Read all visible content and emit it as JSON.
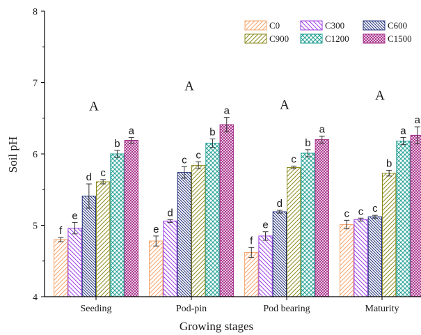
{
  "chart_data": {
    "type": "bar",
    "xlabel": "Growing stages",
    "ylabel": "Soil pH",
    "ylim": [
      4,
      8
    ],
    "yticks": [
      "4",
      "5",
      "6",
      "7",
      "8"
    ],
    "categories": [
      "Seeding",
      "Pod-pin",
      "Pod bearing",
      "Maturity"
    ],
    "group_letters": [
      "A",
      "A",
      "A",
      "A"
    ],
    "legend_position": "top-right",
    "series": [
      {
        "name": "C0",
        "color": "#F5A46A",
        "pattern": "diag-up",
        "values": [
          4.8,
          4.78,
          4.62,
          5.01
        ],
        "errors": [
          0.03,
          0.07,
          0.07,
          0.06
        ],
        "letters": [
          "f",
          "e",
          "f",
          "c"
        ]
      },
      {
        "name": "C300",
        "color": "#9C3CE6",
        "pattern": "diag-down",
        "values": [
          4.96,
          5.06,
          4.85,
          5.08
        ],
        "errors": [
          0.08,
          0.02,
          0.06,
          0.02
        ],
        "letters": [
          "e",
          "d",
          "e",
          "c"
        ]
      },
      {
        "name": "C600",
        "color": "#22307A",
        "pattern": "diag-down-dense",
        "values": [
          5.41,
          5.74,
          5.19,
          5.12
        ],
        "errors": [
          0.17,
          0.08,
          0.02,
          0.02
        ],
        "letters": [
          "d",
          "c",
          "d",
          "c"
        ]
      },
      {
        "name": "C900",
        "color": "#8B8A1E",
        "pattern": "diag-up",
        "values": [
          5.61,
          5.84,
          5.81,
          5.73
        ],
        "errors": [
          0.03,
          0.05,
          0.02,
          0.04
        ],
        "letters": [
          "c",
          "c",
          "c",
          "b"
        ]
      },
      {
        "name": "C1200",
        "color": "#1F9E92",
        "pattern": "cross",
        "values": [
          6.0,
          6.15,
          6.01,
          6.18
        ],
        "errors": [
          0.05,
          0.06,
          0.05,
          0.05
        ],
        "letters": [
          "b",
          "b",
          "b",
          "a"
        ]
      },
      {
        "name": "C1500",
        "color": "#A52A86",
        "pattern": "cross-dense",
        "values": [
          6.19,
          6.41,
          6.2,
          6.26
        ],
        "errors": [
          0.04,
          0.1,
          0.05,
          0.12
        ],
        "letters": [
          "a",
          "a",
          "a",
          "a"
        ]
      }
    ]
  }
}
